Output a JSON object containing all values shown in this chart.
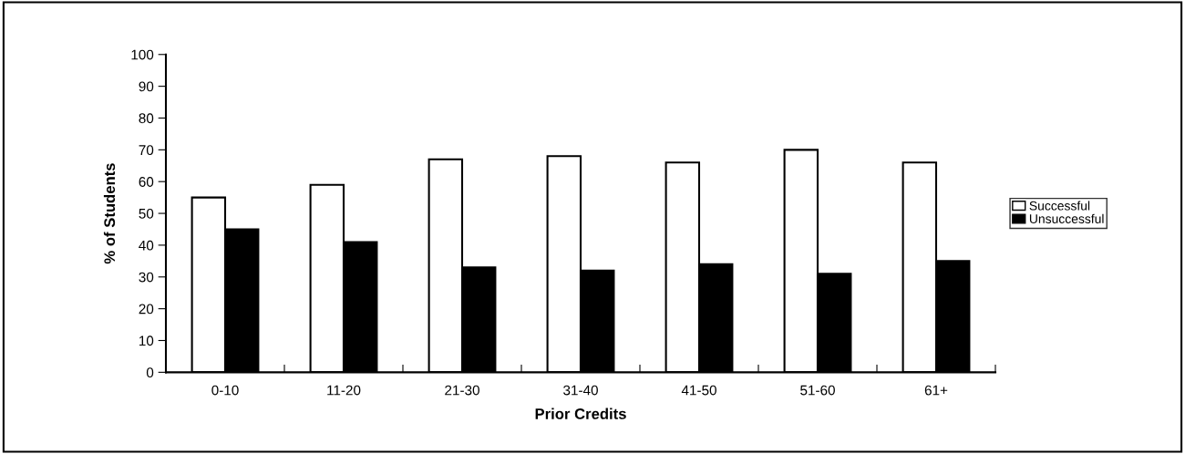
{
  "chart_data": {
    "type": "bar",
    "xlabel": "Prior Credits",
    "ylabel": "% of Students",
    "categories": [
      "0-10",
      "11-20",
      "21-30",
      "31-40",
      "41-50",
      "51-60",
      "61+"
    ],
    "series": [
      {
        "name": "Successful",
        "color": "#ffffff",
        "values": [
          55,
          59,
          67,
          68,
          66,
          70,
          66
        ]
      },
      {
        "name": "Unsuccessful",
        "color": "#000000",
        "values": [
          45,
          41,
          33,
          32,
          34,
          31,
          35
        ]
      }
    ],
    "ylim": [
      0,
      100
    ],
    "yticks": [
      0,
      10,
      20,
      30,
      40,
      50,
      60,
      70,
      80,
      90,
      100
    ],
    "grid": false,
    "legend": "right"
  }
}
